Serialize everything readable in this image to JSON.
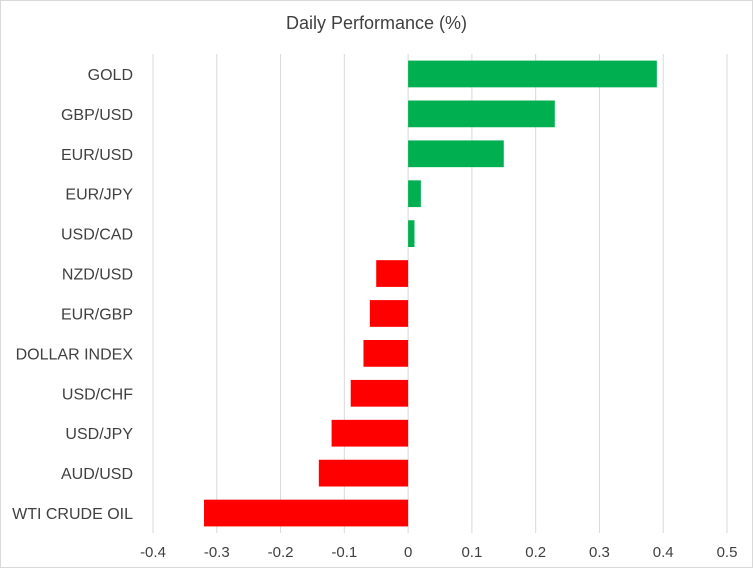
{
  "chart_data": {
    "type": "bar",
    "orientation": "horizontal",
    "title": "Daily Performance (%)",
    "xlabel": "",
    "ylabel": "",
    "categories": [
      "GOLD",
      "GBP/USD",
      "EUR/USD",
      "EUR/JPY",
      "USD/CAD",
      "NZD/USD",
      "EUR/GBP",
      "DOLLAR INDEX",
      "USD/CHF",
      "USD/JPY",
      "AUD/USD",
      "WTI CRUDE OIL"
    ],
    "values": [
      0.39,
      0.23,
      0.15,
      0.02,
      0.01,
      -0.05,
      -0.06,
      -0.07,
      -0.09,
      -0.12,
      -0.14,
      -0.32
    ],
    "xlim": [
      -0.4,
      0.5
    ],
    "xticks": [
      "-0.4",
      "-0.3",
      "-0.2",
      "-0.1",
      "0",
      "0.1",
      "0.2",
      "0.3",
      "0.4",
      "0.5"
    ],
    "tick_values": [
      -0.4,
      -0.3,
      -0.2,
      -0.1,
      0,
      0.1,
      0.2,
      0.3,
      0.4,
      0.5
    ],
    "grid": true,
    "legend": "none",
    "colors": {
      "positive": "#00b050",
      "negative": "#ff0000",
      "grid": "#d9d9d9",
      "text": "#404040"
    }
  }
}
